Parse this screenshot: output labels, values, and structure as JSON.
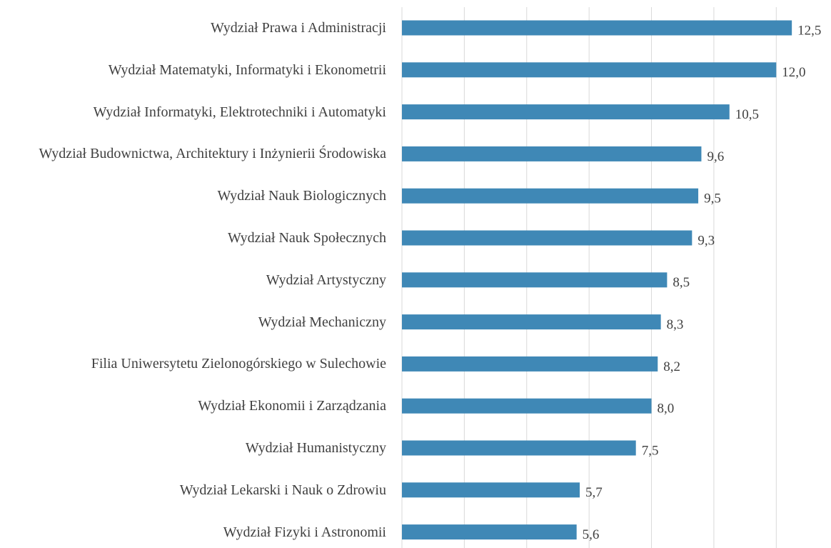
{
  "chart_data": {
    "type": "bar",
    "orientation": "horizontal",
    "categories": [
      "Wydział Prawa i Administracji",
      "Wydział Matematyki, Informatyki i Ekonometrii",
      "Wydział Informatyki, Elektrotechniki i Automatyki",
      "Wydział Budownictwa, Architektury i Inżynierii Środowiska",
      "Wydział Nauk Biologicznych",
      "Wydział Nauk Społecznych",
      "Wydział Artystyczny",
      "Wydział Mechaniczny",
      "Filia Uniwersytetu Zielonogórskiego w Sulechowie",
      "Wydział Ekonomii i Zarządzania",
      "Wydział Humanistyczny",
      "Wydział Lekarski i Nauk o Zdrowiu",
      "Wydział Fizyki i Astronomii"
    ],
    "values": [
      12.5,
      12.0,
      10.5,
      9.6,
      9.5,
      9.3,
      8.5,
      8.3,
      8.2,
      8.0,
      7.5,
      5.7,
      5.6
    ],
    "value_labels": [
      "12,5",
      "12,0",
      "10,5",
      "9,6",
      "9,5",
      "9,3",
      "8,5",
      "8,3",
      "8,2",
      "8,0",
      "7,5",
      "5,7",
      "5,6"
    ],
    "color": "#3f88b6",
    "xlim": [
      0,
      13
    ],
    "xticks": [
      0,
      2,
      4,
      6,
      8,
      10,
      12
    ],
    "grid": true
  }
}
